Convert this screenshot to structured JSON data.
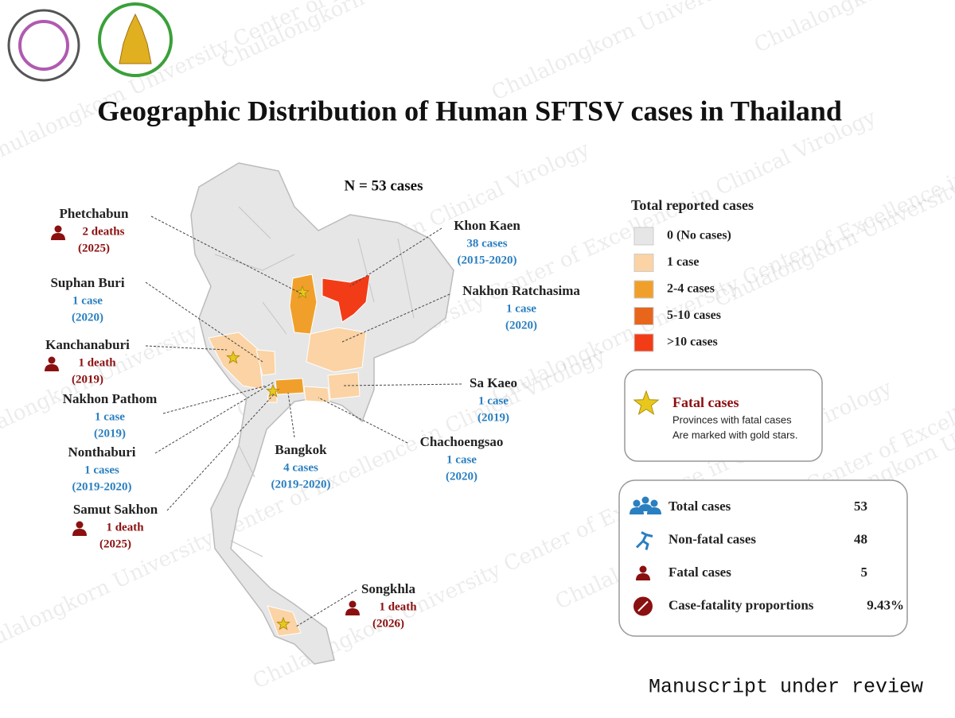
{
  "watermark": "Chulalongkorn University Center of Excellence in Clinical Virology",
  "title": "Geographic Distribution of Human SFTSV cases in Thailand",
  "n_label": "N = 53 cases",
  "provinces": [
    {
      "name": "Phetchabun",
      "detail": "2 deaths",
      "period": "(2025)",
      "fatal": true
    },
    {
      "name": "Suphan Buri",
      "detail": "1 case",
      "period": "(2020)",
      "fatal": false
    },
    {
      "name": "Kanchanaburi",
      "detail": "1 death",
      "period": "(2019)",
      "fatal": true
    },
    {
      "name": "Nakhon Pathom",
      "detail": "1 case",
      "period": "(2019)",
      "fatal": false
    },
    {
      "name": "Nonthaburi",
      "detail": "1 cases",
      "period": "(2019-2020)",
      "fatal": false
    },
    {
      "name": "Samut Sakhon",
      "detail": "1 death",
      "period": "(2025)",
      "fatal": true
    },
    {
      "name": "Khon Kaen",
      "detail": "38 cases",
      "period": "(2015-2020)",
      "fatal": false
    },
    {
      "name": "Nakhon Ratchasima",
      "detail": "1 case",
      "period": "(2020)",
      "fatal": false
    },
    {
      "name": "Sa Kaeo",
      "detail": "1 case",
      "period": "(2019)",
      "fatal": false
    },
    {
      "name": "Chachoengsao",
      "detail": "1 case",
      "period": "(2020)",
      "fatal": false
    },
    {
      "name": "Bangkok",
      "detail": "4 cases",
      "period": "(2019-2020)",
      "fatal": false
    },
    {
      "name": "Songkhla",
      "detail": "1 death",
      "period": "(2026)",
      "fatal": true
    }
  ],
  "legend": {
    "title": "Total reported cases",
    "items": [
      {
        "label": "0 (No cases)",
        "color": "#e6e6e6"
      },
      {
        "label": "1 case",
        "color": "#fbd3a4"
      },
      {
        "label": "2-4 cases",
        "color": "#f0a02a"
      },
      {
        "label": "5-10 cases",
        "color": "#e8661c"
      },
      {
        "label": ">10 cases",
        "color": "#f23c17"
      }
    ]
  },
  "fatal_box": {
    "title": "Fatal cases",
    "lines": [
      "Provinces with fatal cases",
      "Are marked with gold stars."
    ]
  },
  "summary": [
    {
      "label": "Total cases",
      "value": "53"
    },
    {
      "label": "Non-fatal cases",
      "value": "48"
    },
    {
      "label": "Fatal cases",
      "value": "5"
    },
    {
      "label": "Case-fatality proportions",
      "value": "9.43%"
    }
  ],
  "footer": "Manuscript under review"
}
